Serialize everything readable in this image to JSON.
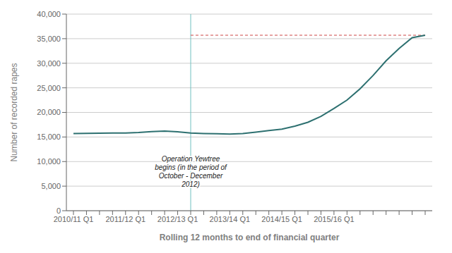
{
  "chart_data": {
    "type": "line",
    "xlabel": "Rolling 12 months to end of financial quarter",
    "ylabel": "Number of recorded rapes",
    "categories": [
      "2010/11 Q1",
      null,
      null,
      null,
      "2011/12 Q1",
      null,
      null,
      null,
      "2012/13 Q1",
      null,
      null,
      null,
      "2013/14 Q1",
      null,
      null,
      null,
      "2014/15 Q1",
      null,
      null,
      null,
      "2015/16 Q1",
      null,
      null,
      null,
      null,
      null,
      null,
      null
    ],
    "values": [
      15700,
      15750,
      15780,
      15800,
      15820,
      15900,
      16100,
      16200,
      16050,
      15800,
      15700,
      15650,
      15600,
      15700,
      16000,
      16300,
      16600,
      17200,
      18000,
      19200,
      20800,
      22500,
      24800,
      27500,
      30500,
      33000,
      35200,
      35700
    ],
    "color": "#2d7070",
    "ylim": [
      0,
      40000
    ],
    "yticks": [
      0,
      {
        "value": 5000,
        "label": "5,000"
      },
      {
        "value": 10000,
        "label": "10,000"
      },
      {
        "value": 15000,
        "label": "15,000"
      },
      {
        "value": 20000,
        "label": "20,000"
      },
      {
        "value": 25000,
        "label": "25,000"
      },
      {
        "value": 30000,
        "label": "30,000"
      },
      {
        "value": 35000,
        "label": "35,000"
      },
      {
        "value": 40000,
        "label": "40,000"
      }
    ],
    "grid": true,
    "reference_lines": [
      {
        "axis": "x",
        "value": 9,
        "color": "#70c0c0"
      },
      {
        "axis": "y",
        "value": 35700,
        "from": 9,
        "to": 27,
        "color": "#cc4444",
        "line_style": "dashed"
      }
    ],
    "annotations": [
      {
        "text": "Operation Yewtree\nbegins (in the period of\nOctober - December\n2012)",
        "y": 8000
      }
    ]
  }
}
